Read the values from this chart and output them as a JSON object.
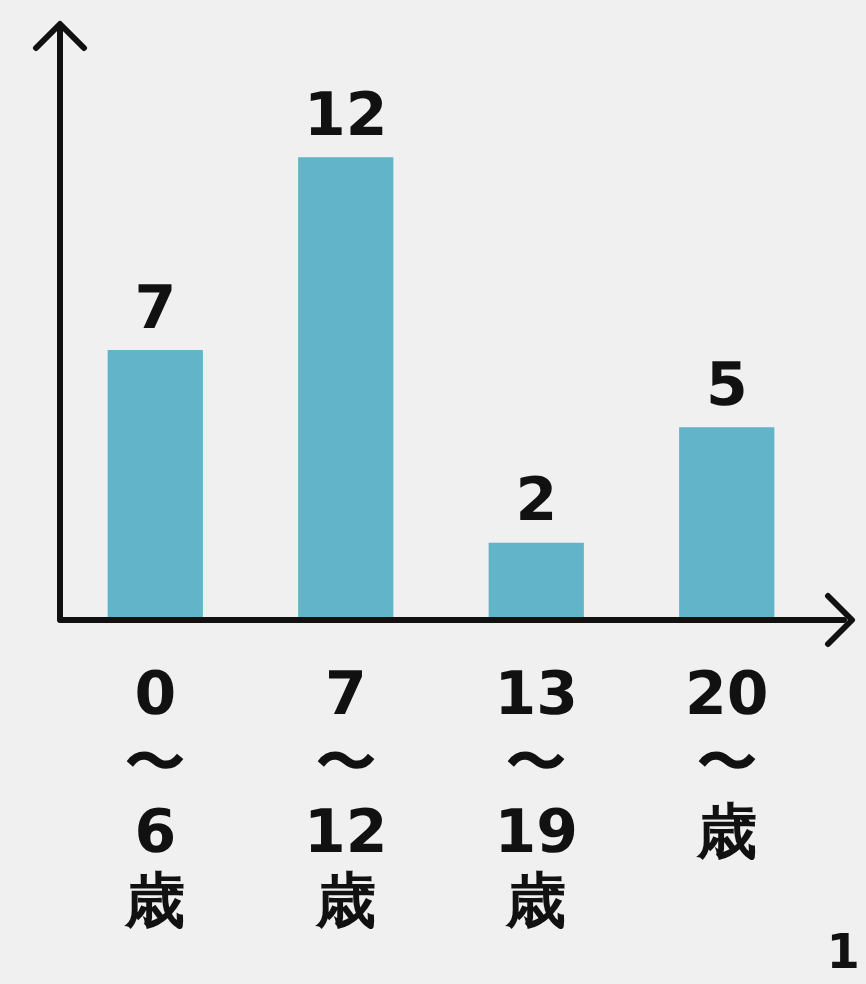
{
  "chart_data": {
    "type": "bar",
    "categories": [
      "0〜6歳",
      "7〜12歳",
      "13〜19歳",
      "20〜歳"
    ],
    "values": [
      7,
      12,
      2,
      5
    ],
    "color": "#62b5c8",
    "data_labels": true,
    "grid": false,
    "legend": false,
    "annotations": [
      "1"
    ]
  }
}
